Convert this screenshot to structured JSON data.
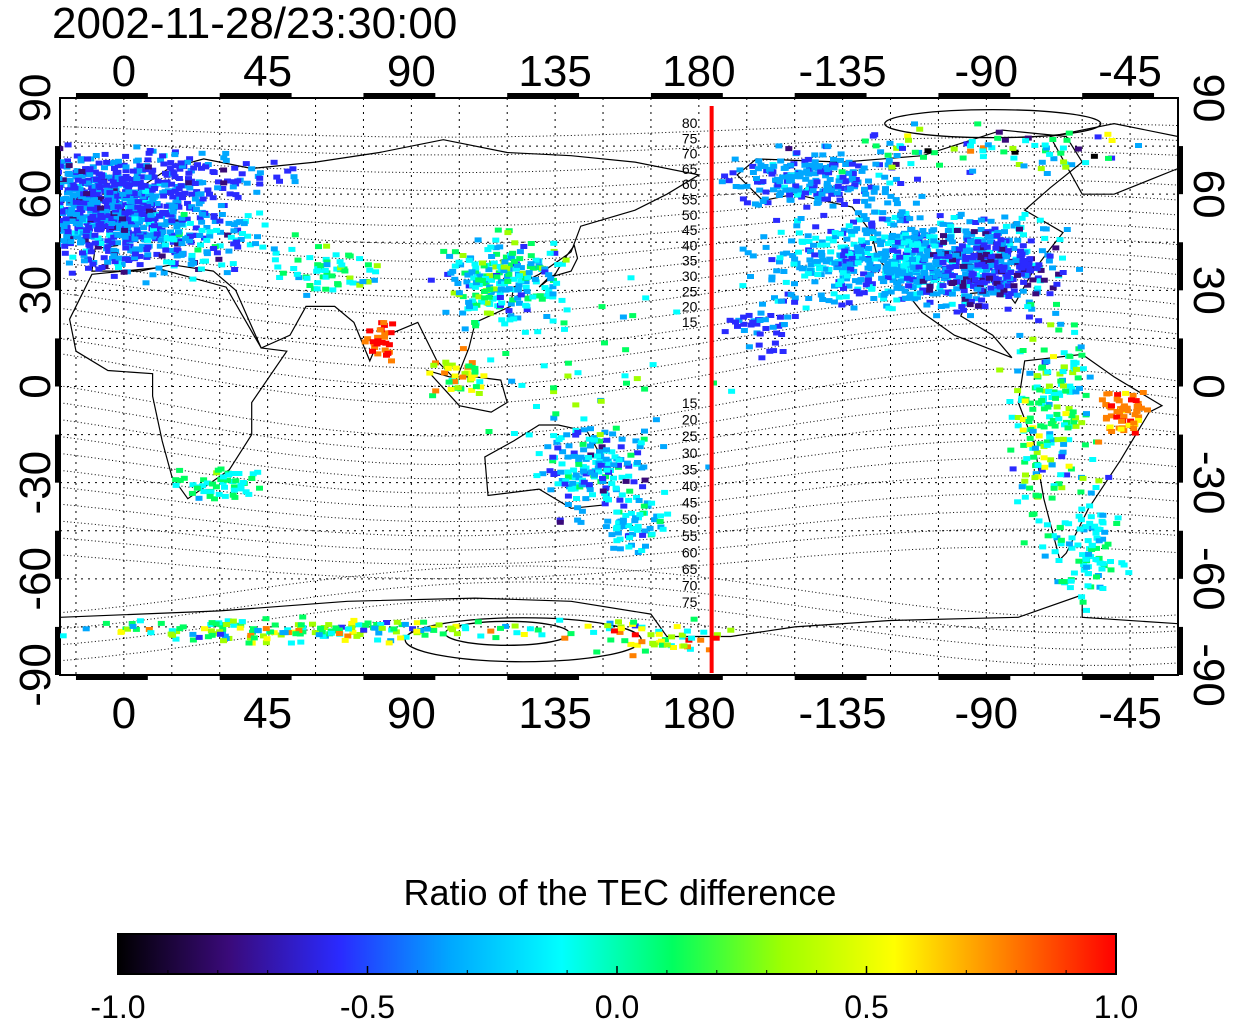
{
  "title": "2002-11-28/23:30:00",
  "map": {
    "lon_ticks": [
      "0",
      "45",
      "90",
      "135",
      "180",
      "-135",
      "-90",
      "-45"
    ],
    "lon_values": [
      0,
      45,
      90,
      135,
      180,
      225,
      270,
      315
    ],
    "lat_ticks": [
      "-90",
      "-60",
      "-30",
      "0",
      "30",
      "60",
      "90"
    ],
    "lat_values": [
      -90,
      -60,
      -30,
      0,
      30,
      60,
      90
    ],
    "lon_range": [
      -20,
      330
    ],
    "lat_range": [
      -90,
      90
    ],
    "meridian_line_lon": 184,
    "meridian_line_color": "#ff0000",
    "north_contour_labels": [
      "80",
      "75",
      "70",
      "65",
      "60",
      "55",
      "50",
      "45",
      "40",
      "35",
      "30",
      "25",
      "20",
      "15"
    ],
    "south_contour_labels": [
      "15",
      "20",
      "25",
      "30",
      "35",
      "40",
      "45",
      "50",
      "55",
      "60",
      "65",
      "70",
      "75"
    ],
    "grid": "dotted"
  },
  "colorbar": {
    "title": "Ratio of the TEC difference",
    "min": -1.0,
    "max": 1.0,
    "tick_labels": [
      "-1.0",
      "-0.5",
      "0.0",
      "0.5",
      "1.0"
    ],
    "tick_values": [
      -1.0,
      -0.5,
      0.0,
      0.5,
      1.0
    ],
    "colors": [
      "#000000",
      "#3a0a7a",
      "#2a2aff",
      "#00a8ff",
      "#00ffff",
      "#00ff60",
      "#a0ff00",
      "#ffff00",
      "#ff8000",
      "#ff0000"
    ]
  }
}
